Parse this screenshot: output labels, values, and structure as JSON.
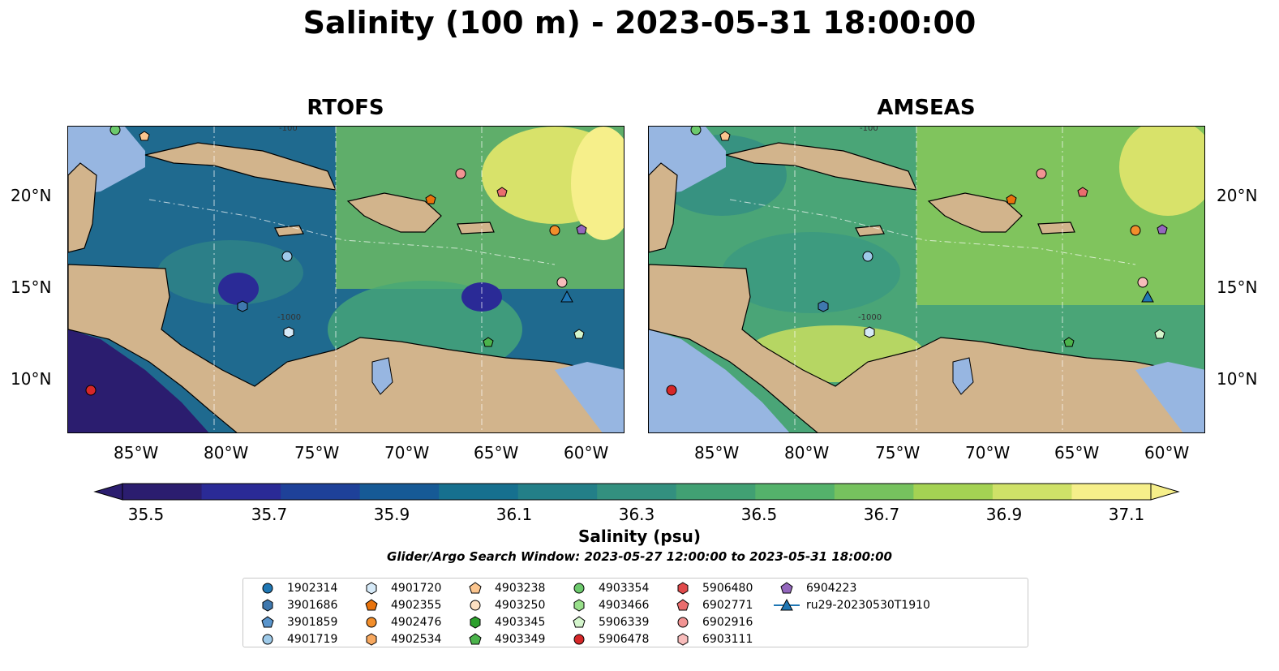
{
  "title": "Salinity (100 m) - 2023-05-31 18:00:00",
  "panels": [
    {
      "title": "RTOFS"
    },
    {
      "title": "AMSEAS"
    }
  ],
  "map": {
    "longitude_ticks": [
      "85°W",
      "80°W",
      "75°W",
      "70°W",
      "65°W",
      "60°W"
    ],
    "latitude_ticks": [
      "20°N",
      "15°N",
      "10°N"
    ],
    "land_color": "#d2b48c",
    "shallow_water_color": "#97b6e1",
    "contour_labels": [
      "-100",
      "-1000"
    ]
  },
  "colorbar": {
    "label": "Salinity (psu)",
    "ticks": [
      "35.5",
      "35.7",
      "35.9",
      "36.1",
      "36.3",
      "36.5",
      "36.7",
      "36.9",
      "37.1"
    ],
    "colors": [
      "#2b1d6f",
      "#2a2a96",
      "#1e4199",
      "#165a96",
      "#16708f",
      "#237f88",
      "#33907f",
      "#41a073",
      "#54b26b",
      "#76c25e",
      "#a4d253",
      "#cfe168",
      "#f6ef8a"
    ]
  },
  "search_window": "Glider/Argo Search Window: 2023-05-27 12:00:00 to 2023-05-31 18:00:00",
  "legend": {
    "items": [
      {
        "label": "1902314",
        "marker": "circle",
        "color": "#1f77b4"
      },
      {
        "label": "3901686",
        "marker": "hexagon",
        "color": "#3f78ae"
      },
      {
        "label": "3901859",
        "marker": "pentagon",
        "color": "#5a95cc"
      },
      {
        "label": "4901719",
        "marker": "circle",
        "color": "#9ecae9"
      },
      {
        "label": "4901720",
        "marker": "hexagon",
        "color": "#d6eaf8"
      },
      {
        "label": "4902355",
        "marker": "pentagon",
        "color": "#e8730c"
      },
      {
        "label": "4902476",
        "marker": "circle",
        "color": "#f28e2b"
      },
      {
        "label": "4902534",
        "marker": "hexagon",
        "color": "#f7a85f"
      },
      {
        "label": "4903238",
        "marker": "pentagon",
        "color": "#fbc58e"
      },
      {
        "label": "4903250",
        "marker": "circle",
        "color": "#fde0c2"
      },
      {
        "label": "4903345",
        "marker": "hexagon",
        "color": "#2ca02c"
      },
      {
        "label": "4903349",
        "marker": "pentagon",
        "color": "#4bb34b"
      },
      {
        "label": "4903354",
        "marker": "circle",
        "color": "#6cc96c"
      },
      {
        "label": "4903466",
        "marker": "hexagon",
        "color": "#98df8a"
      },
      {
        "label": "5906339",
        "marker": "pentagon",
        "color": "#d4f5cc"
      },
      {
        "label": "5906478",
        "marker": "circle",
        "color": "#d62728"
      },
      {
        "label": "5906480",
        "marker": "hexagon",
        "color": "#e04a4b"
      },
      {
        "label": "6902771",
        "marker": "pentagon",
        "color": "#ea6d6e"
      },
      {
        "label": "6902916",
        "marker": "circle",
        "color": "#f29493"
      },
      {
        "label": "6903111",
        "marker": "hexagon",
        "color": "#f8bcbb"
      },
      {
        "label": "6904223",
        "marker": "pentagon",
        "color": "#9467bd"
      },
      {
        "label": "ru29-20230530T1910",
        "marker": "triangle-line",
        "color": "#1f77b4"
      }
    ]
  }
}
